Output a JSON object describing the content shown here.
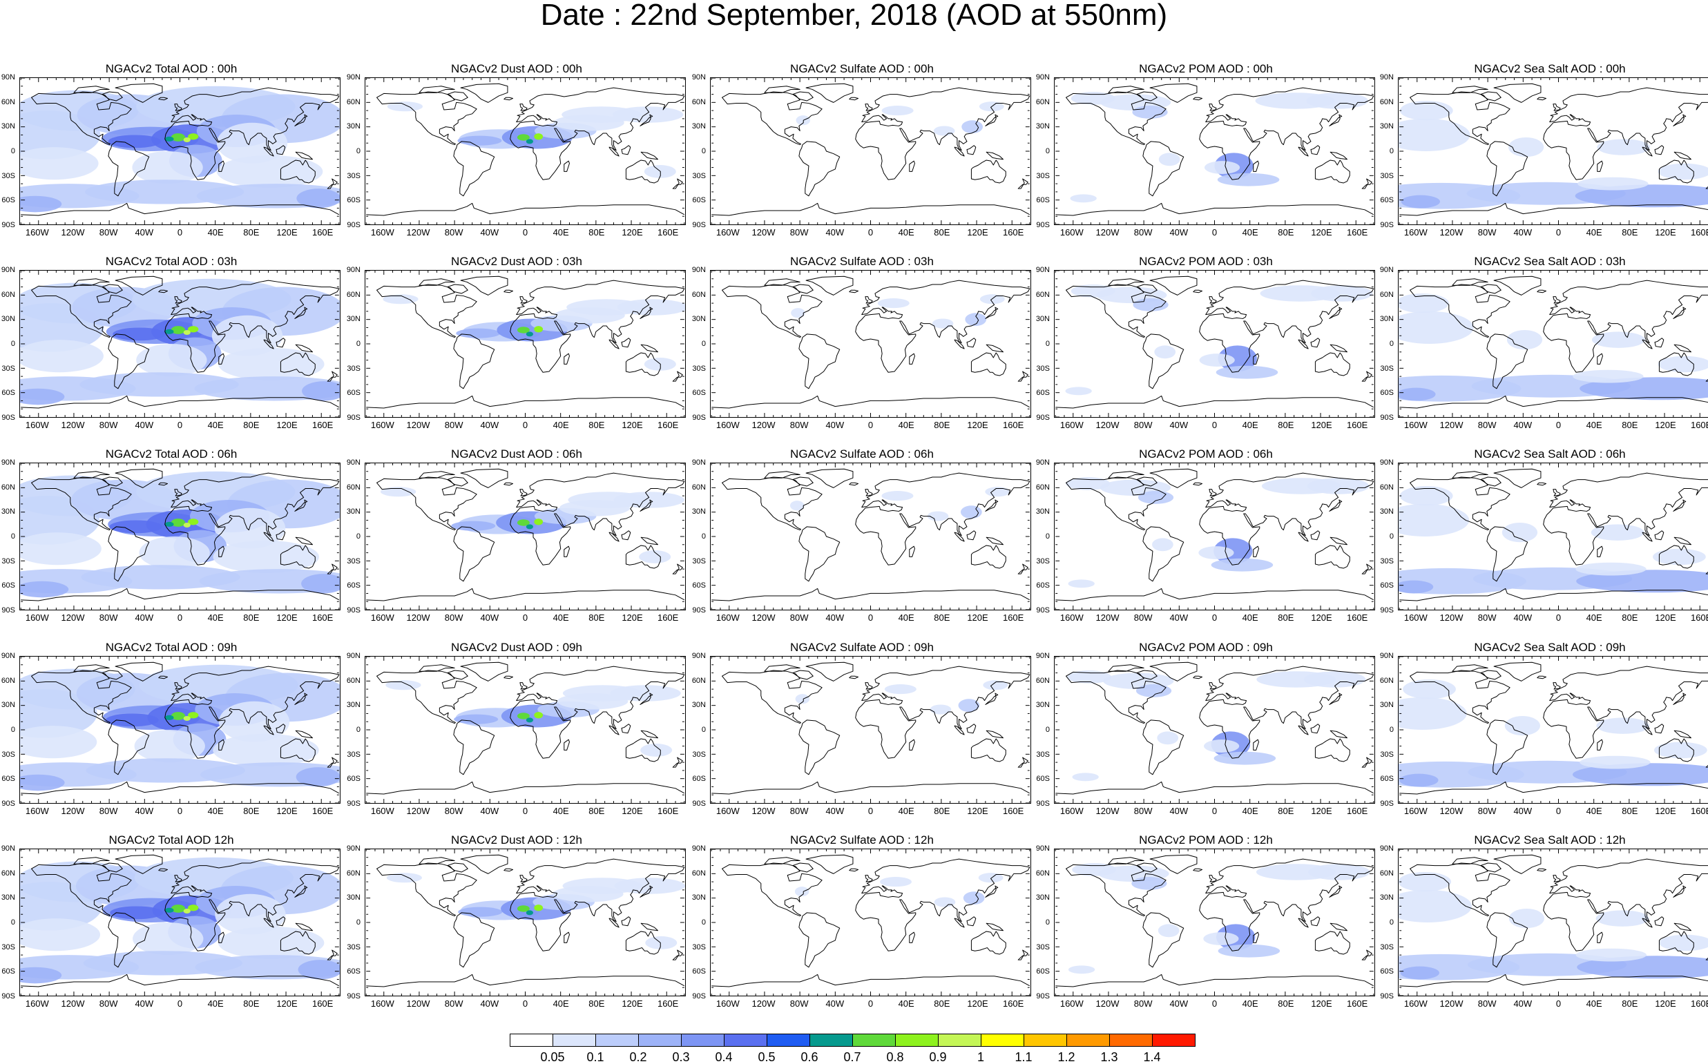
{
  "title": "Date : 22nd September, 2018 (AOD at 550nm)",
  "lat_labels": [
    "90N",
    "60N",
    "30N",
    "0",
    "30S",
    "60S",
    "90S"
  ],
  "lat_values": [
    90,
    60,
    30,
    0,
    -30,
    -60,
    -90
  ],
  "lon_labels": [
    "160W",
    "120W",
    "80W",
    "40W",
    "0",
    "40E",
    "80E",
    "120E",
    "160E"
  ],
  "lon_values": [
    -160,
    -120,
    -80,
    -40,
    0,
    40,
    80,
    120,
    160
  ],
  "columns": [
    {
      "key": "total",
      "titles": [
        "NGACv2 Total AOD : 00h",
        "NGACv2 Total AOD : 03h",
        "NGACv2 Total AOD : 06h",
        "NGACv2 Total AOD : 09h",
        "NGACv2 Total AOD  12h"
      ]
    },
    {
      "key": "dust",
      "titles": [
        "NGACv2 Dust AOD : 00h",
        "NGACv2 Dust AOD : 03h",
        "NGACv2 Dust AOD : 06h",
        "NGACv2 Dust AOD : 09h",
        "NGACv2 Dust AOD : 12h"
      ]
    },
    {
      "key": "sulfate",
      "titles": [
        "NGACv2 Sulfate AOD : 00h",
        "NGACv2 Sulfate AOD : 03h",
        "NGACv2 Sulfate AOD : 06h",
        "NGACv2 Sulfate AOD : 09h",
        "NGACv2 Sulfate AOD : 12h"
      ]
    },
    {
      "key": "pom",
      "titles": [
        "NGACv2 POM AOD : 00h",
        "NGACv2 POM AOD : 03h",
        "NGACv2 POM AOD : 06h",
        "NGACv2 POM AOD : 09h",
        "NGACv2 POM  AOD : 12h"
      ]
    },
    {
      "key": "seasalt",
      "titles": [
        "NGACv2 Sea Salt AOD : 00h",
        "NGACv2 Sea Salt AOD : 03h",
        "NGACv2 Sea Salt AOD : 06h",
        "NGACv2 Sea Salt  AOD : 09h",
        "NGACv2 Sea Salt AOD : 12h"
      ]
    }
  ],
  "colorbar": {
    "labels": [
      "0.05",
      "0.1",
      "0.2",
      "0.3",
      "0.4",
      "0.5",
      "0.6",
      "0.7",
      "0.8",
      "0.9",
      "1",
      "1.1",
      "1.2",
      "1.3",
      "1.4"
    ],
    "colors": [
      "#ffffff",
      "#dce6fc",
      "#bccdfb",
      "#9db3f8",
      "#7d95f4",
      "#5a70f0",
      "#1f5cf2",
      "#069a8e",
      "#5fd93a",
      "#8ef21e",
      "#c4f656",
      "#ffff00",
      "#ffc600",
      "#ff9a00",
      "#ff6a00",
      "#ff1a00"
    ]
  }
}
